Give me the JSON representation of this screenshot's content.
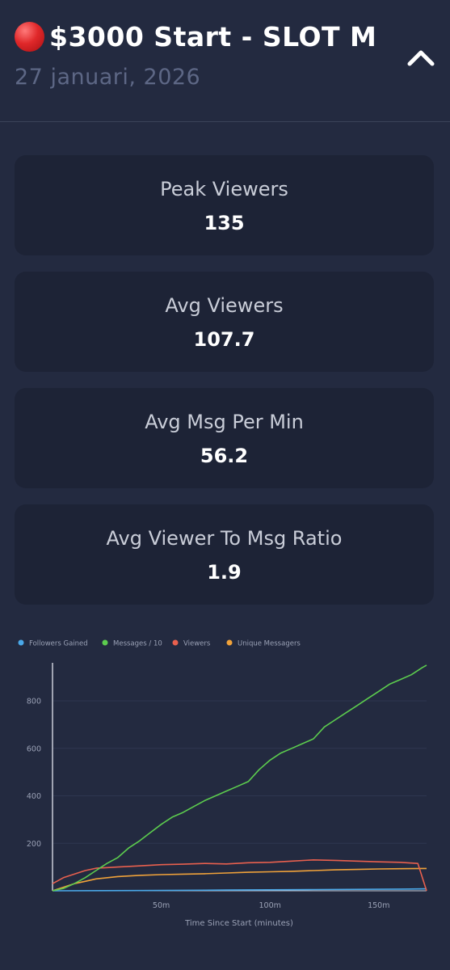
{
  "header": {
    "title": "$3000 Start - SLOT M",
    "date": "27 januari, 2026"
  },
  "stats": [
    {
      "label": "Peak Viewers",
      "value": "135"
    },
    {
      "label": "Avg Viewers",
      "value": "107.7"
    },
    {
      "label": "Avg Msg Per Min",
      "value": "56.2"
    },
    {
      "label": "Avg Viewer To Msg Ratio",
      "value": "1.9"
    }
  ],
  "colors": {
    "followers": "#4aa8e8",
    "messages": "#5ccc4e",
    "viewers": "#e8604e",
    "unique": "#f0a23a"
  },
  "chart_data": {
    "type": "line",
    "xlabel": "Time Since Start (minutes)",
    "ylabel": "",
    "xlim": [
      0,
      172
    ],
    "ylim": [
      0,
      960
    ],
    "x_ticks": [
      50,
      100,
      150
    ],
    "x_tick_labels": [
      "50m",
      "100m",
      "150m"
    ],
    "y_ticks": [
      200,
      400,
      600,
      800
    ],
    "legend_position": "top-left",
    "series": [
      {
        "name": "Followers Gained",
        "color_key": "followers",
        "x": [
          0,
          40,
          80,
          120,
          160,
          172
        ],
        "y": [
          0,
          1,
          3,
          5,
          7,
          8
        ]
      },
      {
        "name": "Messages / 10",
        "color_key": "messages",
        "x": [
          0,
          5,
          10,
          15,
          20,
          25,
          30,
          35,
          40,
          45,
          50,
          55,
          60,
          65,
          70,
          75,
          80,
          85,
          90,
          95,
          100,
          105,
          110,
          115,
          120,
          125,
          130,
          135,
          140,
          145,
          150,
          155,
          160,
          165,
          170,
          172
        ],
        "y": [
          0,
          10,
          30,
          55,
          85,
          115,
          140,
          180,
          210,
          245,
          280,
          310,
          330,
          355,
          380,
          400,
          420,
          440,
          460,
          510,
          550,
          580,
          600,
          620,
          640,
          690,
          720,
          750,
          780,
          810,
          840,
          870,
          890,
          910,
          940,
          950
        ]
      },
      {
        "name": "Viewers",
        "color_key": "viewers",
        "x": [
          0,
          5,
          10,
          15,
          20,
          30,
          40,
          50,
          60,
          70,
          80,
          90,
          100,
          110,
          120,
          130,
          140,
          150,
          160,
          168,
          172
        ],
        "y": [
          30,
          55,
          70,
          85,
          95,
          100,
          105,
          110,
          112,
          115,
          113,
          118,
          120,
          125,
          130,
          128,
          125,
          122,
          120,
          115,
          0
        ]
      },
      {
        "name": "Unique Messagers",
        "color_key": "unique",
        "x": [
          0,
          5,
          10,
          15,
          20,
          30,
          40,
          50,
          60,
          70,
          80,
          90,
          100,
          110,
          120,
          130,
          140,
          150,
          160,
          170,
          172
        ],
        "y": [
          0,
          15,
          30,
          40,
          50,
          60,
          65,
          68,
          70,
          72,
          75,
          78,
          80,
          82,
          85,
          88,
          90,
          92,
          93,
          94,
          94
        ]
      }
    ]
  }
}
